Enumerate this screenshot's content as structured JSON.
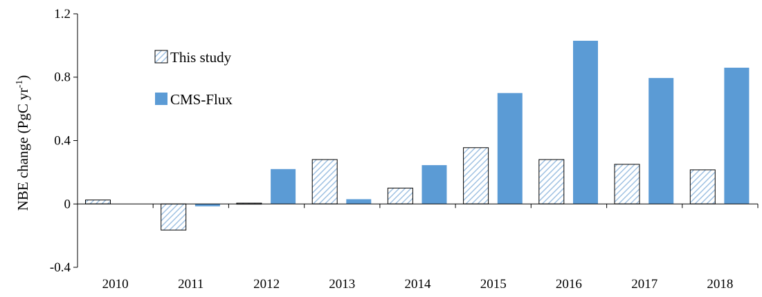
{
  "chart_data": {
    "type": "bar",
    "title": "",
    "xlabel": "",
    "ylabel": {
      "main": "NBE change  (PgC yr",
      "superscript": "-1",
      "suffix": ")"
    },
    "ylim": [
      -0.4,
      1.2
    ],
    "yticks": [
      -0.4,
      0,
      0.4,
      0.8,
      1.2
    ],
    "ytick_labels": [
      "-0.4",
      "0",
      "0.4",
      "0.8",
      "1.2"
    ],
    "categories": [
      "2010",
      "2011",
      "2012",
      "2013",
      "2014",
      "2015",
      "2016",
      "2017",
      "2018"
    ],
    "series": [
      {
        "name": "This study",
        "pattern": "diagonal-hatch",
        "color": "#9fc1e2",
        "values": [
          0.025,
          -0.165,
          0.005,
          0.28,
          0.1,
          0.355,
          0.28,
          0.25,
          0.215
        ]
      },
      {
        "name": "CMS-Flux",
        "color": "#5b9bd5",
        "values": [
          null,
          -0.015,
          0.22,
          0.03,
          0.245,
          0.7,
          1.03,
          0.795,
          0.86
        ]
      }
    ],
    "legend": "top-left",
    "grid": false
  }
}
